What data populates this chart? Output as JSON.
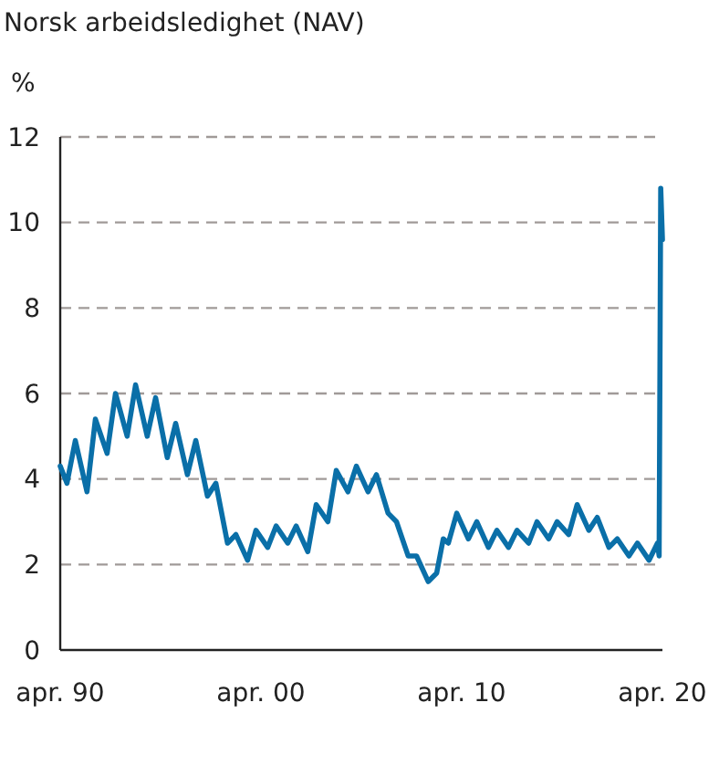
{
  "chart_data": {
    "type": "line",
    "title": "Norsk arbeidsledighet (NAV)",
    "ylabel": "%",
    "x": [
      "1990-04",
      "1990-08",
      "1991-01",
      "1991-08",
      "1992-01",
      "1992-08",
      "1993-01",
      "1993-08",
      "1994-01",
      "1994-08",
      "1995-01",
      "1995-08",
      "1996-01",
      "1996-08",
      "1997-01",
      "1997-08",
      "1998-01",
      "1998-08",
      "1999-01",
      "1999-08",
      "2000-01",
      "2000-08",
      "2001-01",
      "2001-08",
      "2002-01",
      "2002-08",
      "2003-01",
      "2003-08",
      "2004-01",
      "2004-08",
      "2005-01",
      "2005-08",
      "2006-01",
      "2006-08",
      "2007-01",
      "2007-08",
      "2008-01",
      "2008-08",
      "2009-01",
      "2009-05",
      "2009-08",
      "2010-01",
      "2010-08",
      "2011-01",
      "2011-08",
      "2012-01",
      "2012-08",
      "2013-01",
      "2013-08",
      "2014-01",
      "2014-08",
      "2015-01",
      "2015-08",
      "2016-01",
      "2016-08",
      "2017-01",
      "2017-08",
      "2018-01",
      "2018-08",
      "2019-01",
      "2019-08",
      "2020-01",
      "2020-02",
      "2020-03",
      "2020-04"
    ],
    "series": [
      {
        "color": "#0a6fa8",
        "values": [
          4.3,
          3.9,
          4.9,
          3.7,
          5.4,
          4.6,
          6.0,
          5.0,
          6.2,
          5.0,
          5.9,
          4.5,
          5.3,
          4.1,
          4.9,
          3.6,
          3.9,
          2.5,
          2.7,
          2.1,
          2.8,
          2.4,
          2.9,
          2.5,
          2.9,
          2.3,
          3.4,
          3.0,
          4.2,
          3.7,
          4.3,
          3.7,
          4.1,
          3.2,
          3.0,
          2.2,
          2.2,
          1.6,
          1.8,
          2.6,
          2.5,
          3.2,
          2.6,
          3.0,
          2.4,
          2.8,
          2.4,
          2.8,
          2.5,
          3.0,
          2.6,
          3.0,
          2.7,
          3.4,
          2.8,
          3.1,
          2.4,
          2.6,
          2.2,
          2.5,
          2.1,
          2.5,
          2.2,
          10.8,
          9.6
        ]
      }
    ],
    "xlim": [
      "1990-04",
      "2020-04"
    ],
    "xticks": [
      {
        "value": "1990-04",
        "label": "apr. 90"
      },
      {
        "value": "2000-04",
        "label": "apr. 00"
      },
      {
        "value": "2010-04",
        "label": "apr. 10"
      },
      {
        "value": "2020-04",
        "label": "apr. 20"
      }
    ],
    "ylim": [
      0,
      12
    ],
    "yticks": [
      0,
      2,
      4,
      6,
      8,
      10,
      12
    ],
    "grid": "y"
  }
}
